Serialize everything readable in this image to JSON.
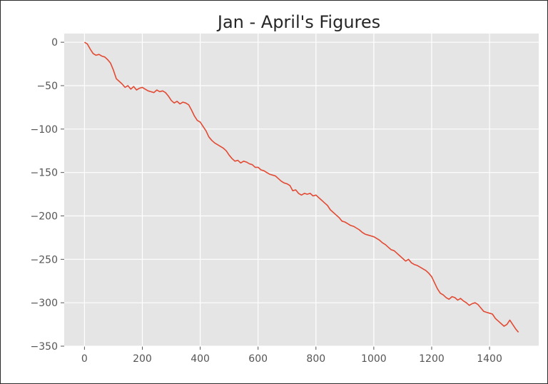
{
  "chart_data": {
    "type": "line",
    "title": "Jan - April's Figures",
    "xlabel": "",
    "ylabel": "",
    "xlim": [
      -70,
      1570
    ],
    "ylim": [
      -350,
      10
    ],
    "xticks": [
      0,
      200,
      400,
      600,
      800,
      1000,
      1200,
      1400
    ],
    "yticks": [
      0,
      -50,
      -100,
      -150,
      -200,
      -250,
      -300,
      -350
    ],
    "xtick_labels": [
      "0",
      "200",
      "400",
      "600",
      "800",
      "1000",
      "1200",
      "1400"
    ],
    "ytick_labels": [
      "0",
      "−50",
      "−100",
      "−150",
      "−200",
      "−250",
      "−300",
      "−350"
    ],
    "grid": true,
    "colors": {
      "background": "#e5e5e5",
      "grid": "#ffffff",
      "line": "#e24a33"
    },
    "series": [
      {
        "x": [
          0,
          10,
          20,
          30,
          40,
          50,
          60,
          70,
          80,
          90,
          100,
          110,
          120,
          130,
          140,
          150,
          160,
          170,
          180,
          190,
          200,
          210,
          220,
          230,
          240,
          250,
          260,
          270,
          280,
          290,
          300,
          310,
          320,
          330,
          340,
          350,
          360,
          370,
          380,
          390,
          400,
          410,
          420,
          430,
          440,
          450,
          460,
          470,
          480,
          490,
          500,
          510,
          520,
          530,
          540,
          550,
          560,
          570,
          580,
          590,
          600,
          610,
          620,
          630,
          640,
          650,
          660,
          670,
          680,
          690,
          700,
          710,
          720,
          730,
          740,
          750,
          760,
          770,
          780,
          790,
          800,
          810,
          820,
          830,
          840,
          850,
          860,
          870,
          880,
          890,
          900,
          910,
          920,
          930,
          940,
          950,
          960,
          970,
          980,
          990,
          1000,
          1010,
          1020,
          1030,
          1040,
          1050,
          1060,
          1070,
          1080,
          1090,
          1100,
          1110,
          1120,
          1130,
          1140,
          1150,
          1160,
          1170,
          1180,
          1190,
          1200,
          1210,
          1220,
          1230,
          1240,
          1250,
          1260,
          1270,
          1280,
          1290,
          1300,
          1310,
          1320,
          1330,
          1340,
          1350,
          1360,
          1370,
          1380,
          1390,
          1400,
          1410,
          1420,
          1430,
          1440,
          1450,
          1460,
          1470,
          1480,
          1490,
          1500
        ],
        "y": [
          0,
          -2,
          -8,
          -13,
          -15,
          -14,
          -16,
          -17,
          -20,
          -24,
          -32,
          -42,
          -45,
          -48,
          -52,
          -50,
          -54,
          -51,
          -55,
          -53,
          -52,
          -54,
          -56,
          -57,
          -58,
          -55,
          -57,
          -56,
          -58,
          -62,
          -67,
          -70,
          -68,
          -71,
          -69,
          -70,
          -72,
          -78,
          -85,
          -90,
          -92,
          -97,
          -102,
          -109,
          -113,
          -116,
          -118,
          -120,
          -122,
          -125,
          -130,
          -134,
          -137,
          -136,
          -139,
          -137,
          -138,
          -140,
          -141,
          -144,
          -144,
          -147,
          -148,
          -150,
          -152,
          -153,
          -154,
          -157,
          -160,
          -162,
          -163,
          -165,
          -171,
          -170,
          -174,
          -176,
          -174,
          -175,
          -174,
          -177,
          -176,
          -179,
          -182,
          -185,
          -188,
          -193,
          -196,
          -199,
          -202,
          -206,
          -207,
          -209,
          -211,
          -212,
          -214,
          -216,
          -219,
          -221,
          -222,
          -223,
          -224,
          -226,
          -228,
          -231,
          -233,
          -236,
          -239,
          -240,
          -243,
          -246,
          -249,
          -252,
          -250,
          -254,
          -256,
          -257,
          -259,
          -261,
          -263,
          -266,
          -270,
          -277,
          -284,
          -289,
          -291,
          -294,
          -296,
          -293,
          -294,
          -297,
          -295,
          -298,
          -300,
          -303,
          -301,
          -300,
          -302,
          -306,
          -310,
          -311,
          -312,
          -313,
          -318,
          -321,
          -324,
          -327,
          -325,
          -320,
          -325,
          -330,
          -334
        ]
      }
    ]
  }
}
